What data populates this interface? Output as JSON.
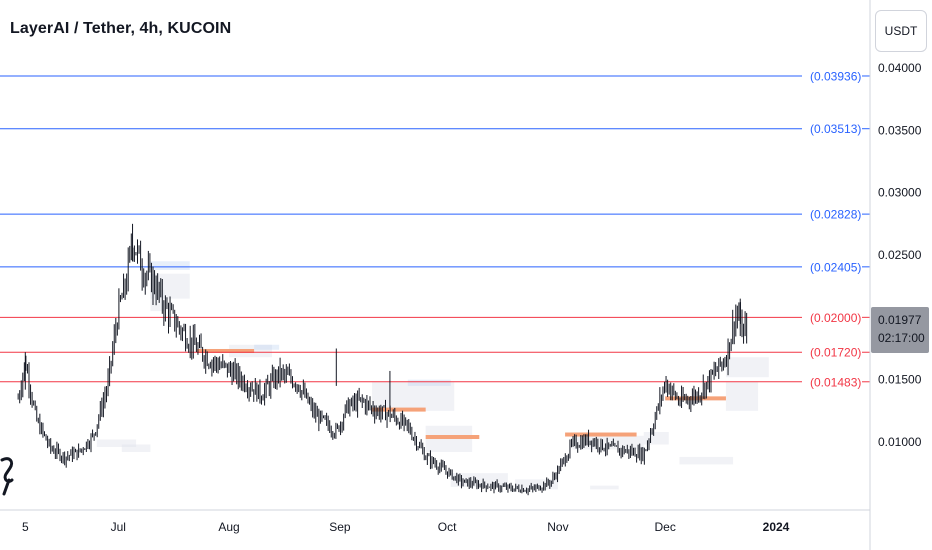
{
  "header": {
    "title": "LayerAI / Tether, 4h, KUCOIN",
    "unit_button": "USDT"
  },
  "price_badge": {
    "price": "0.01977",
    "countdown": "02:17:00"
  },
  "colors": {
    "resistance": "#2962ff",
    "support": "#f23645",
    "candle": "#131722",
    "zone": "#f5a279"
  },
  "icons": {
    "logo": "tradingview-logo-icon"
  },
  "chart_data": {
    "type": "candlestick",
    "title": "LayerAI / Tether, 4h, KUCOIN",
    "ylim": [
      0.0035,
      0.0445
    ],
    "y_ticks": [
      {
        "value": 0.04,
        "label": "0.04000"
      },
      {
        "value": 0.035,
        "label": "0.03500"
      },
      {
        "value": 0.03,
        "label": "0.03000"
      },
      {
        "value": 0.025,
        "label": "0.02500"
      },
      {
        "value": 0.02,
        "label": ""
      },
      {
        "value": 0.015,
        "label": "0.01500"
      },
      {
        "value": 0.01,
        "label": "0.01000"
      }
    ],
    "x_ticks": [
      "5",
      "Jul",
      "Aug",
      "Sep",
      "Oct",
      "Nov",
      "Dec",
      "2024"
    ],
    "horizontal_levels": [
      {
        "value": 0.03936,
        "label": "(0.03936)",
        "kind": "resistance"
      },
      {
        "value": 0.03513,
        "label": "(0.03513)",
        "kind": "resistance"
      },
      {
        "value": 0.02828,
        "label": "(0.02828)",
        "kind": "resistance"
      },
      {
        "value": 0.02405,
        "label": "(0.02405)",
        "kind": "resistance"
      },
      {
        "value": 0.02,
        "label": "(0.02000)",
        "kind": "support"
      },
      {
        "value": 0.0172,
        "label": "(0.01720)",
        "kind": "support"
      },
      {
        "value": 0.01483,
        "label": "(0.01483)",
        "kind": "support"
      }
    ],
    "price_path": [
      [
        "2023-06-03",
        0.0135
      ],
      [
        "2023-06-05",
        0.0165
      ],
      [
        "2023-06-08",
        0.0118
      ],
      [
        "2023-06-12",
        0.0095
      ],
      [
        "2023-06-16",
        0.0088
      ],
      [
        "2023-06-20",
        0.0092
      ],
      [
        "2023-06-24",
        0.0105
      ],
      [
        "2023-06-28",
        0.0145
      ],
      [
        "2023-07-01",
        0.0205
      ],
      [
        "2023-07-03",
        0.0225
      ],
      [
        "2023-07-05",
        0.0262
      ],
      [
        "2023-07-08",
        0.0238
      ],
      [
        "2023-07-11",
        0.0228
      ],
      [
        "2023-07-14",
        0.0208
      ],
      [
        "2023-07-18",
        0.0192
      ],
      [
        "2023-07-22",
        0.0178
      ],
      [
        "2023-07-27",
        0.0165
      ],
      [
        "2023-08-01",
        0.0158
      ],
      [
        "2023-08-05",
        0.0149
      ],
      [
        "2023-08-10",
        0.0138
      ],
      [
        "2023-08-15",
        0.0155
      ],
      [
        "2023-08-20",
        0.0148
      ],
      [
        "2023-08-25",
        0.0122
      ],
      [
        "2023-08-31",
        0.0108
      ],
      [
        "2023-09-03",
        0.0128
      ],
      [
        "2023-09-07",
        0.0133
      ],
      [
        "2023-09-11",
        0.0125
      ],
      [
        "2023-09-15",
        0.0122
      ],
      [
        "2023-09-20",
        0.0112
      ],
      [
        "2023-09-25",
        0.0088
      ],
      [
        "2023-09-30",
        0.0078
      ],
      [
        "2023-10-05",
        0.0068
      ],
      [
        "2023-10-12",
        0.0065
      ],
      [
        "2023-10-18",
        0.0063
      ],
      [
        "2023-10-25",
        0.0062
      ],
      [
        "2023-10-30",
        0.0068
      ],
      [
        "2023-11-02",
        0.0082
      ],
      [
        "2023-11-05",
        0.0098
      ],
      [
        "2023-11-10",
        0.0102
      ],
      [
        "2023-11-15",
        0.0095
      ],
      [
        "2023-11-20",
        0.0093
      ],
      [
        "2023-11-25",
        0.009
      ],
      [
        "2023-11-28",
        0.0118
      ],
      [
        "2023-12-01",
        0.0148
      ],
      [
        "2023-12-05",
        0.0132
      ],
      [
        "2023-12-10",
        0.0138
      ],
      [
        "2023-12-14",
        0.0152
      ],
      [
        "2023-12-18",
        0.0168
      ],
      [
        "2023-12-21",
        0.0205
      ],
      [
        "2023-12-23",
        0.0185
      ],
      [
        "2023-12-24",
        0.0198
      ]
    ],
    "zones": [
      {
        "start": "2023-07-23",
        "end": "2023-08-08",
        "value": 0.0173
      },
      {
        "start": "2023-09-10",
        "end": "2023-09-25",
        "value": 0.0126
      },
      {
        "start": "2023-09-25",
        "end": "2023-10-10",
        "value": 0.0104
      },
      {
        "start": "2023-11-03",
        "end": "2023-11-23",
        "value": 0.0106
      },
      {
        "start": "2023-12-01",
        "end": "2023-12-18",
        "value": 0.0135
      }
    ]
  }
}
